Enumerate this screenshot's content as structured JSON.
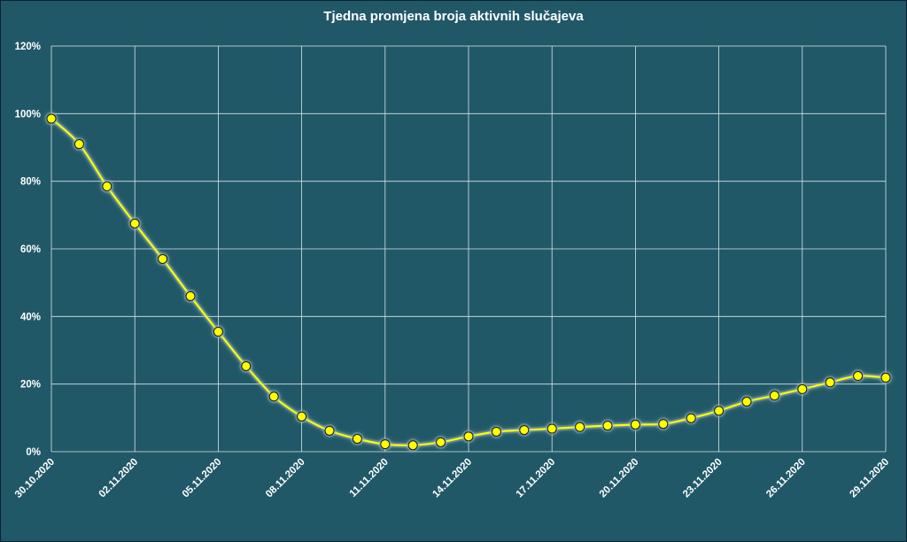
{
  "chart_data": {
    "type": "line",
    "title": "Tjedna promjena broja aktivnih slučajeva",
    "xlabel": "",
    "ylabel": "",
    "ylim": [
      0,
      120
    ],
    "grid": true,
    "legend": "none",
    "y_tick_labels": [
      "0%",
      "20%",
      "40%",
      "60%",
      "80%",
      "100%",
      "120%"
    ],
    "x_tick_labels": [
      "30.10.2020",
      "02.11.2020",
      "05.11.2020",
      "08.11.2020",
      "11.11.2020",
      "14.11.2020",
      "17.11.2020",
      "20.11.2020",
      "23.11.2020",
      "26.11.2020",
      "29.11.2020"
    ],
    "x": [
      "30.10.2020",
      "31.10.2020",
      "01.11.2020",
      "02.11.2020",
      "03.11.2020",
      "04.11.2020",
      "05.11.2020",
      "06.11.2020",
      "07.11.2020",
      "08.11.2020",
      "09.11.2020",
      "10.11.2020",
      "11.11.2020",
      "12.11.2020",
      "13.11.2020",
      "14.11.2020",
      "15.11.2020",
      "16.11.2020",
      "17.11.2020",
      "18.11.2020",
      "19.11.2020",
      "20.11.2020",
      "21.11.2020",
      "22.11.2020",
      "23.11.2020",
      "24.11.2020",
      "25.11.2020",
      "26.11.2020",
      "27.11.2020",
      "28.11.2020",
      "29.11.2020"
    ],
    "series": [
      {
        "values": [
          98.5,
          91,
          78.5,
          67.5,
          57,
          46,
          35.5,
          25.3,
          16.3,
          10.4,
          6.2,
          3.8,
          2.2,
          1.9,
          2.8,
          4.5,
          5.9,
          6.4,
          6.8,
          7.3,
          7.7,
          8.0,
          8.2,
          9.9,
          12.1,
          14.8,
          16.6,
          18.5,
          20.5,
          22.4,
          21.9
        ]
      }
    ],
    "colors": {
      "background": "#215868",
      "frame": "#0f2f3a",
      "grid": "#d8e4e8",
      "line": "#ffff00",
      "marker_fill": "#ffff00",
      "marker_stroke": "#1a1a1a",
      "glow": "#9ab8c0",
      "text": "#ffffff"
    }
  }
}
